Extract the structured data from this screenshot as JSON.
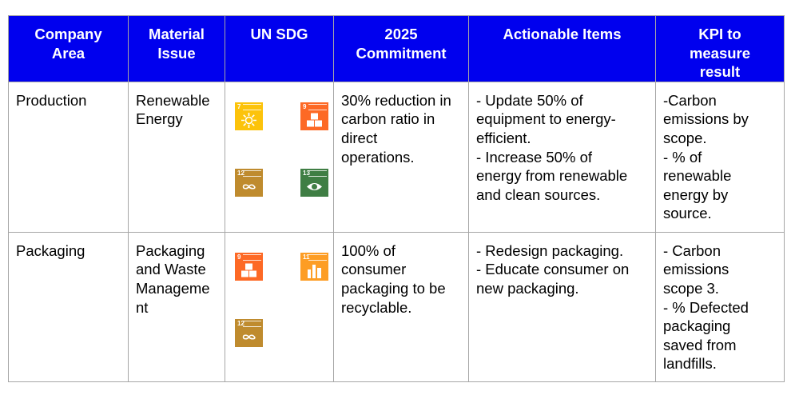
{
  "headers": [
    "Company\nArea",
    "Material\nIssue",
    "UN SDG",
    "2025\nCommitment",
    "Actionable Items",
    "KPI to\nmeasure\nresult"
  ],
  "rows": [
    {
      "area": "Production",
      "issue": [
        "Renewable",
        "Energy"
      ],
      "sdg_icons": [
        {
          "number": "7",
          "name": "affordable-clean-energy-icon",
          "color": "#fcc30b"
        },
        {
          "number": "9",
          "name": "industry-innovation-icon",
          "color": "#fd6925"
        },
        {
          "number": "12",
          "name": "responsible-consumption-icon",
          "color": "#bf8b2e"
        },
        {
          "number": "13",
          "name": "climate-action-icon",
          "color": "#3f7e44"
        }
      ],
      "commitment": [
        "30% reduction in",
        "carbon ratio in",
        "direct",
        "operations."
      ],
      "actions": [
        "- Update 50% of",
        "equipment to energy-",
        "efficient.",
        "- Increase 50% of",
        "energy from renewable",
        "and clean sources."
      ],
      "kpi": [
        "-Carbon",
        "emissions by",
        "scope.",
        "- % of",
        "renewable",
        "energy by",
        "source."
      ]
    },
    {
      "area": "Packaging",
      "issue": [
        "Packaging",
        "and Waste",
        "Manageme",
        "nt"
      ],
      "sdg_icons": [
        {
          "number": "9",
          "name": "industry-innovation-icon",
          "color": "#fd6925"
        },
        {
          "number": "11",
          "name": "sustainable-cities-icon",
          "color": "#fd9d24"
        },
        {
          "number": "12",
          "name": "responsible-consumption-icon",
          "color": "#bf8b2e"
        }
      ],
      "commitment": [
        "100% of",
        "consumer",
        "packaging to be",
        "recyclable."
      ],
      "actions": [
        "- Redesign packaging.",
        "- Educate consumer on",
        "new packaging."
      ],
      "kpi": [
        "- Carbon",
        "emissions",
        "scope 3.",
        "- % Defected",
        "packaging",
        "saved from",
        "landfills."
      ]
    }
  ],
  "colors": {
    "header_bg": "#0000ee",
    "header_text": "#ffffff",
    "border": "#a6a6a6"
  }
}
